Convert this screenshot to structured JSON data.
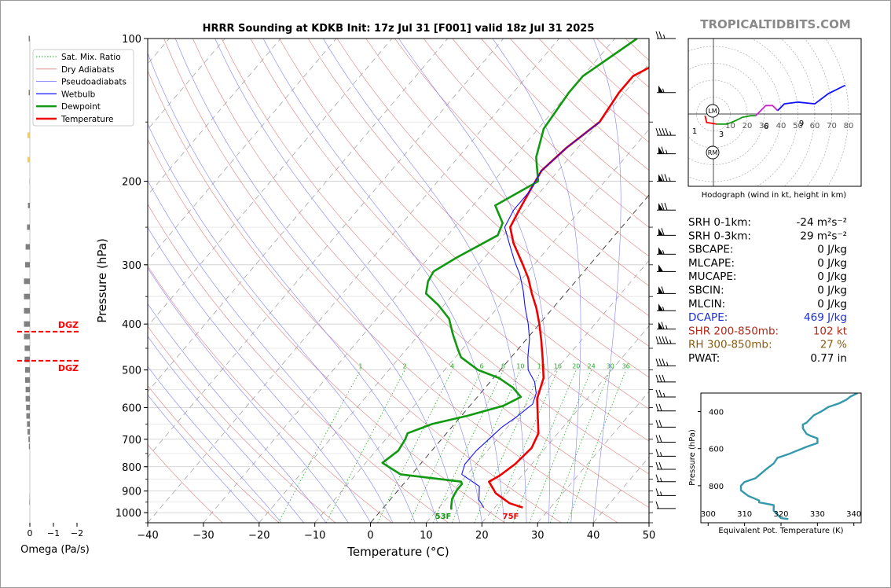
{
  "chart_data": {
    "type": "line",
    "title": "HRRR Sounding at KDKB Init: 17z Jul 31 [F001] valid 18z Jul 31 2025",
    "watermark": "TROPICALTIDBITS.COM",
    "xlabel": "Temperature (°C)",
    "ylabel": "Pressure (hPa)",
    "xlim": [
      -40,
      50
    ],
    "ylim": [
      1050,
      100
    ],
    "x_ticks": [
      "−40",
      "−30",
      "−20",
      "−10",
      "0",
      "10",
      "20",
      "30",
      "40",
      "50"
    ],
    "y_ticks": [
      "100",
      "200",
      "300",
      "400",
      "500",
      "600",
      "700",
      "800",
      "900",
      "1000"
    ],
    "legend": [
      "Sat. Mix. Ratio",
      "Dry Adiabats",
      "Pseudoadiabats",
      "Wetbulb",
      "Dewpoint",
      "Temperature"
    ],
    "legend_position": "top-left",
    "colors": {
      "temperature": "#ee0000",
      "dewpoint": "#119911",
      "wetbulb": "#1010ff",
      "mixratio": "#22aa22",
      "dry": "#e08080",
      "moist": "#8080ff",
      "dgz": "#ff0000",
      "omega": "#808080"
    },
    "series": [
      {
        "name": "Temperature",
        "points": [
          [
            25,
            975
          ],
          [
            22,
            955
          ],
          [
            18,
            910
          ],
          [
            15,
            860
          ],
          [
            16,
            835
          ],
          [
            17,
            790
          ],
          [
            17.5,
            730
          ],
          [
            16.5,
            680
          ],
          [
            14,
            630
          ],
          [
            11,
            575
          ],
          [
            9,
            520
          ],
          [
            6,
            475
          ],
          [
            3,
            435
          ],
          [
            0,
            400
          ],
          [
            -3,
            370
          ],
          [
            -6,
            345
          ],
          [
            -9,
            320
          ],
          [
            -12,
            300
          ],
          [
            -17,
            270
          ],
          [
            -20,
            250
          ],
          [
            -21,
            230
          ],
          [
            -22,
            210
          ],
          [
            -23,
            190
          ],
          [
            -22,
            170
          ],
          [
            -20,
            150
          ],
          [
            -21,
            130
          ],
          [
            -21,
            120
          ],
          [
            -14,
            100
          ]
        ]
      },
      {
        "name": "Dewpoint",
        "points": [
          [
            12.5,
            985
          ],
          [
            12,
            970
          ],
          [
            11,
            935
          ],
          [
            10.5,
            895
          ],
          [
            10.5,
            870
          ],
          [
            10,
            860
          ],
          [
            -2,
            830
          ],
          [
            -7,
            785
          ],
          [
            -6,
            740
          ],
          [
            -6.5,
            700
          ],
          [
            -7,
            680
          ],
          [
            -4,
            650
          ],
          [
            1,
            625
          ],
          [
            6,
            595
          ],
          [
            7.8,
            570
          ],
          [
            5,
            545
          ],
          [
            1,
            520
          ],
          [
            -4,
            500
          ],
          [
            -9,
            470
          ],
          [
            -11,
            450
          ],
          [
            -14,
            420
          ],
          [
            -17,
            390
          ],
          [
            -21,
            365
          ],
          [
            -25,
            345
          ],
          [
            -26.5,
            325
          ],
          [
            -27,
            310
          ],
          [
            -25,
            290
          ],
          [
            -21,
            260
          ],
          [
            -22,
            245
          ],
          [
            -26,
            225
          ],
          [
            -22,
            200
          ],
          [
            -26,
            178
          ],
          [
            -29,
            155
          ],
          [
            -30,
            130
          ],
          [
            -30,
            120
          ],
          [
            -26,
            100
          ]
        ]
      },
      {
        "name": "Wetbulb",
        "points": [
          [
            18,
            975
          ],
          [
            16,
            940
          ],
          [
            14,
            880
          ],
          [
            9,
            830
          ],
          [
            8,
            790
          ],
          [
            8,
            740
          ],
          [
            8.5,
            700
          ],
          [
            9,
            660
          ],
          [
            10,
            630
          ],
          [
            11,
            590
          ],
          [
            10,
            560
          ],
          [
            8,
            530
          ],
          [
            5,
            500
          ],
          [
            3,
            470
          ],
          [
            0.5,
            430
          ],
          [
            -2,
            400
          ],
          [
            -5,
            370
          ],
          [
            -8,
            340
          ],
          [
            -11,
            315
          ],
          [
            -14,
            295
          ],
          [
            -17,
            275
          ],
          [
            -21,
            250
          ],
          [
            -22,
            230
          ],
          [
            -22,
            210
          ],
          [
            -23,
            190
          ],
          [
            -22,
            170
          ],
          [
            -20,
            150
          ]
        ]
      }
    ],
    "surface_labels": {
      "temperature": "75F",
      "dewpoint": "53F"
    },
    "dgz": {
      "label": "DGZ",
      "top_hpa": 415,
      "bottom_hpa": 478
    },
    "mixratio_labels": [
      "1",
      "2",
      "4",
      "6",
      "8",
      "10",
      "13",
      "16",
      "20",
      "24",
      "30",
      "36"
    ],
    "wind_barbs": [
      {
        "p": 100,
        "speed": 25
      },
      {
        "p": 130,
        "speed": 55
      },
      {
        "p": 160,
        "speed": 45
      },
      {
        "p": 175,
        "speed": 65
      },
      {
        "p": 200,
        "speed": 75
      },
      {
        "p": 230,
        "speed": 70
      },
      {
        "p": 260,
        "speed": 60
      },
      {
        "p": 285,
        "speed": 55
      },
      {
        "p": 310,
        "speed": 50
      },
      {
        "p": 345,
        "speed": 60
      },
      {
        "p": 375,
        "speed": 55
      },
      {
        "p": 410,
        "speed": 65
      },
      {
        "p": 440,
        "speed": 45
      },
      {
        "p": 490,
        "speed": 35
      },
      {
        "p": 530,
        "speed": 30
      },
      {
        "p": 570,
        "speed": 25
      },
      {
        "p": 610,
        "speed": 20
      },
      {
        "p": 660,
        "speed": 20
      },
      {
        "p": 710,
        "speed": 20
      },
      {
        "p": 760,
        "speed": 15
      },
      {
        "p": 810,
        "speed": 20
      },
      {
        "p": 860,
        "speed": 15
      },
      {
        "p": 920,
        "speed": 15
      },
      {
        "p": 980,
        "speed": 10
      }
    ],
    "omega": {
      "label": "Omega (Pa/s)",
      "xlim": [
        0.3,
        -2
      ],
      "x_ticks": [
        "0",
        "−1",
        "−2"
      ],
      "values": [
        [
          100,
          -0.05
        ],
        [
          130,
          -0.05
        ],
        [
          160,
          -0.08
        ],
        [
          180,
          -0.1
        ],
        [
          200,
          -0.01
        ],
        [
          225,
          -0.08
        ],
        [
          250,
          -0.12
        ],
        [
          275,
          -0.18
        ],
        [
          300,
          -0.2
        ],
        [
          325,
          -0.25
        ],
        [
          350,
          -0.25
        ],
        [
          375,
          -0.25
        ],
        [
          400,
          -0.25
        ],
        [
          425,
          -0.25
        ],
        [
          450,
          -0.22
        ],
        [
          475,
          -0.22
        ],
        [
          500,
          -0.2
        ],
        [
          525,
          -0.2
        ],
        [
          550,
          -0.18
        ],
        [
          575,
          -0.18
        ],
        [
          600,
          -0.16
        ],
        [
          625,
          -0.15
        ],
        [
          650,
          -0.12
        ],
        [
          675,
          -0.1
        ],
        [
          700,
          -0.06
        ],
        [
          725,
          -0.04
        ],
        [
          925,
          -0.01
        ],
        [
          950,
          -0.02
        ]
      ],
      "yellow": [
        [
          160,
          -0.1
        ],
        [
          180,
          -0.1
        ]
      ]
    },
    "hodograph": {
      "caption": "Hodograph (wind in kt, height in km)",
      "rings": [
        "10",
        "20",
        "30",
        "40",
        "50",
        "60",
        "70",
        "80"
      ],
      "storm_motion_labels": [
        "LM",
        "RM"
      ],
      "height_labels": [
        "1",
        "3",
        "6",
        "9"
      ],
      "segments": [
        {
          "color": "#ff0000",
          "points": [
            [
              -5,
              -1
            ],
            [
              -4,
              -5
            ],
            [
              2,
              -6
            ]
          ]
        },
        {
          "color": "#119911",
          "points": [
            [
              2,
              -6
            ],
            [
              8,
              -6
            ],
            [
              13,
              -4
            ],
            [
              17,
              -2
            ],
            [
              22,
              -1
            ],
            [
              25,
              -1
            ]
          ]
        },
        {
          "color": "#cc22cc",
          "points": [
            [
              25,
              -1
            ],
            [
              28,
              2
            ],
            [
              31,
              5
            ],
            [
              35,
              5
            ],
            [
              38,
              2
            ]
          ]
        },
        {
          "color": "#1010ff",
          "points": [
            [
              38,
              2
            ],
            [
              42,
              6
            ],
            [
              50,
              7
            ],
            [
              60,
              6
            ],
            [
              68,
              12
            ],
            [
              78,
              17
            ]
          ]
        }
      ]
    },
    "indices": [
      {
        "label": "SRH 0-1km:",
        "value": "-24 m²s⁻²",
        "color": "#000000"
      },
      {
        "label": "SRH 0-3km:",
        "value": "29 m²s⁻²",
        "color": "#000000"
      },
      {
        "label": "SBCAPE:",
        "value": "0 J/kg",
        "color": "#000000"
      },
      {
        "label": "MLCAPE:",
        "value": "0 J/kg",
        "color": "#000000"
      },
      {
        "label": "MUCAPE:",
        "value": "0 J/kg",
        "color": "#000000"
      },
      {
        "label": "SBCIN:",
        "value": "0 J/kg",
        "color": "#000000"
      },
      {
        "label": "MLCIN:",
        "value": "0 J/kg",
        "color": "#000000"
      },
      {
        "label": "DCAPE:",
        "value": "469 J/kg",
        "color": "#1a2fd0"
      },
      {
        "label": "SHR 200-850mb:",
        "value": "102 kt",
        "color": "#b02a1a"
      },
      {
        "label": "RH 300-850mb:",
        "value": "27 %",
        "color": "#8a5a10"
      },
      {
        "label": "PWAT:",
        "value": "0.77 in",
        "color": "#000000"
      }
    ],
    "theta_e": {
      "xlabel": "Equivalent Pot. Temperature (K)",
      "ylabel": "Pressure (hPa)",
      "xlim": [
        298,
        342
      ],
      "ylim": [
        1000,
        300
      ],
      "x_ticks": [
        "300",
        "310",
        "320",
        "330",
        "340"
      ],
      "y_ticks": [
        "400",
        "600",
        "800"
      ],
      "color": "#3399aa",
      "points": [
        [
          322,
          980
        ],
        [
          320,
          975
        ],
        [
          318,
          935
        ],
        [
          318,
          905
        ],
        [
          314,
          890
        ],
        [
          314,
          880
        ],
        [
          311,
          855
        ],
        [
          309,
          825
        ],
        [
          309,
          800
        ],
        [
          310,
          780
        ],
        [
          313,
          760
        ],
        [
          316,
          710
        ],
        [
          318,
          680
        ],
        [
          319,
          650
        ],
        [
          322,
          630
        ],
        [
          327,
          590
        ],
        [
          330,
          570
        ],
        [
          330,
          545
        ],
        [
          328,
          530
        ],
        [
          327,
          520
        ],
        [
          326,
          490
        ],
        [
          326,
          470
        ],
        [
          327,
          460
        ],
        [
          329,
          420
        ],
        [
          331,
          400
        ],
        [
          333,
          375
        ],
        [
          336,
          355
        ],
        [
          338,
          335
        ],
        [
          339,
          320
        ],
        [
          341,
          300
        ]
      ]
    }
  }
}
